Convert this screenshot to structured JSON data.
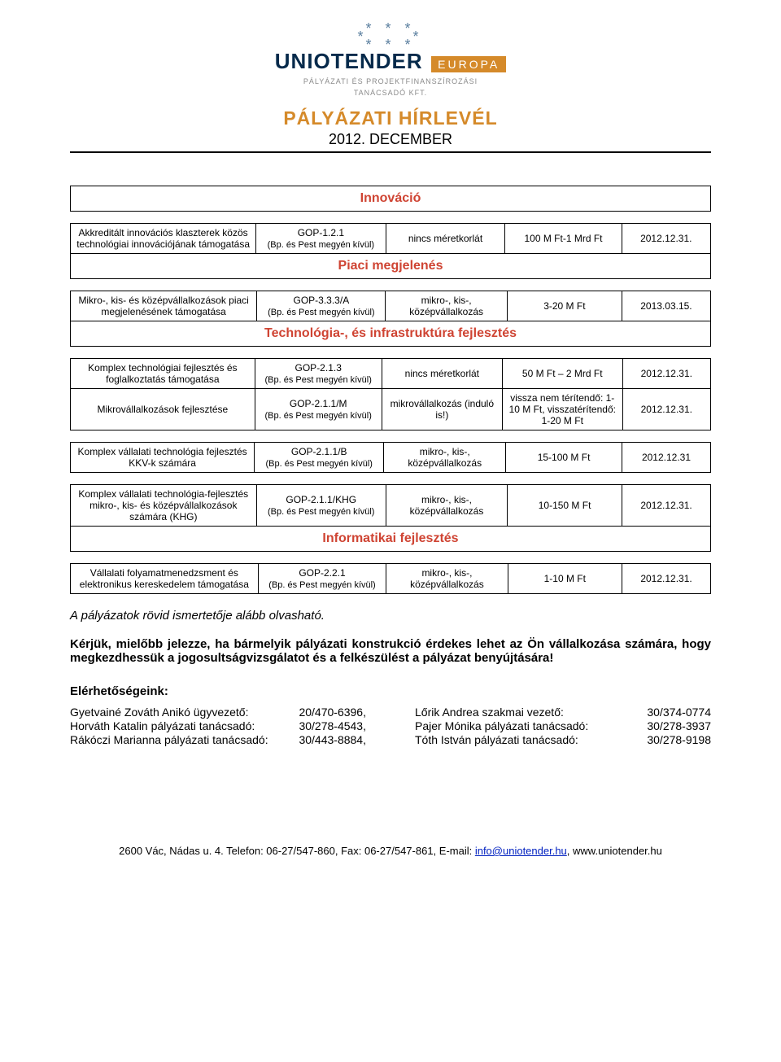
{
  "logo": {
    "word_left": "UNI",
    "word_mid": "O",
    "word_right": "TENDER",
    "europa": "EUROPA",
    "sub1": "PÁLYÁZATI ÉS PROJEKTFINANSZÍROZÁSI",
    "sub2": "TANÁCSADÓ KFT."
  },
  "header": {
    "title": "PÁLYÁZATI  HÍRLEVÉL",
    "subtitle": "2012. DECEMBER"
  },
  "sections": {
    "s1": "Innováció",
    "s2": "Piaci megjelenés",
    "s3": "Technológia-, és infrastruktúra fejlesztés",
    "s4": "Informatikai fejlesztés"
  },
  "rows": {
    "r1": {
      "name": "Akkreditált innovációs klaszterek közös technológiai innovációjának támogatása",
      "code": "GOP-1.2.1",
      "bp": "(Bp. és Pest megyén kívül)",
      "limit": "nincs méretkorlát",
      "amount": "100 M Ft-1 Mrd Ft",
      "date": "2012.12.31."
    },
    "r2": {
      "name": "Mikro-, kis- és középvállalkozások piaci megjelenésének támogatása",
      "code": "GOP-3.3.3/A",
      "bp": "(Bp. és Pest megyén kívül)",
      "limit": "mikro-, kis-, középvállalkozás",
      "amount": "3-20 M Ft",
      "date": "2013.03.15."
    },
    "r3": {
      "name": "Komplex technológiai fejlesztés és foglalkoztatás támogatása",
      "code": "GOP-2.1.3",
      "bp": "(Bp. és Pest megyén kívül)",
      "limit": "nincs méretkorlát",
      "amount": "50 M Ft – 2 Mrd Ft",
      "date": "2012.12.31."
    },
    "r4": {
      "name": "Mikrovállalkozások fejlesztése",
      "code": "GOP-2.1.1/M",
      "bp": "(Bp. és Pest megyén kívül)",
      "limit": "mikrovállalkozás (induló is!)",
      "amount": "vissza nem térítendő: 1-10 M Ft, visszatérítendő: 1-20 M Ft",
      "date": "2012.12.31."
    },
    "r5": {
      "name": "Komplex vállalati technológia fejlesztés KKV-k számára",
      "code": "GOP-2.1.1/B",
      "bp": "(Bp. és Pest megyén kívül)",
      "limit": "mikro-, kis-, középvállalkozás",
      "amount": "15-100 M Ft",
      "date": "2012.12.31"
    },
    "r6": {
      "name": "Komplex vállalati technológia-fejlesztés mikro-, kis- és középvállalkozások számára (KHG)",
      "code": "GOP-2.1.1/KHG",
      "bp": "(Bp. és Pest megyén kívül)",
      "limit": "mikro-, kis-, középvállalkozás",
      "amount": "10-150 M Ft",
      "date": "2012.12.31."
    },
    "r7": {
      "name": "Vállalati folyamatmenedzsment és elektronikus kereskedelem támogatása",
      "code": "GOP-2.2.1",
      "bp": "(Bp. és Pest megyén kívül)",
      "limit": "mikro-, kis-, középvállalkozás",
      "amount": "1-10 M Ft",
      "date": "2012.12.31."
    }
  },
  "body": {
    "p1": "A pályázatok rövid ismertetője alább olvasható.",
    "p2": "Kérjük, mielőbb jelezze, ha bármelyik pályázati konstrukció érdekes lehet az Ön vállalkozása számára, hogy megkezdhessük a jogosultságvizsgálatot és a felkészülést a pályázat benyújtására!",
    "p3": "Elérhetőségeink:"
  },
  "contacts": {
    "left": [
      {
        "name": "Gyetvainé Zováth Anikó ügyvezető:",
        "phone": "20/470-6396,"
      },
      {
        "name": "Horváth Katalin pályázati tanácsadó:",
        "phone": "30/278-4543,"
      },
      {
        "name": "Rákóczi Marianna pályázati tanácsadó:",
        "phone": "30/443-8884,"
      }
    ],
    "right": [
      {
        "name": "Lőrik Andrea szakmai vezető:",
        "phone": "30/374-0774"
      },
      {
        "name": "Pajer Mónika pályázati tanácsadó:",
        "phone": "30/278-3937"
      },
      {
        "name": "Tóth István pályázati tanácsadó:",
        "phone": "30/278-9198"
      }
    ]
  },
  "footer": {
    "text1": "2600 Vác, Nádas u. 4.   Telefon: 06-27/547-860, Fax: 06-27/547-861, E-mail: ",
    "email": "info@uniotender.hu",
    "text2": ", www.uniotender.hu"
  },
  "style": {
    "accent": "#d58a2a",
    "section_color": "#cf4433",
    "border_color": "#000000",
    "link_color": "#0020c0",
    "body_fontsize": 15,
    "table_fontsize": 12
  }
}
